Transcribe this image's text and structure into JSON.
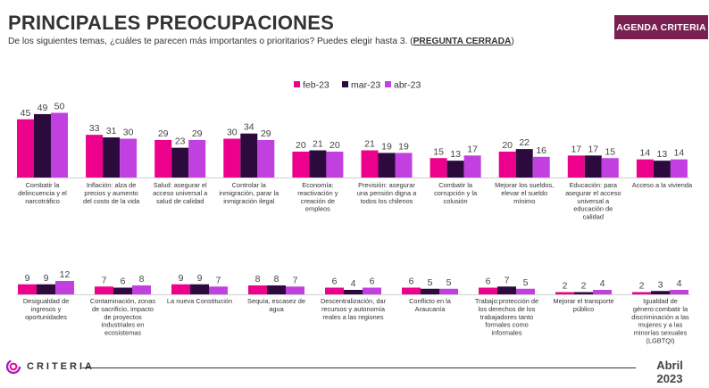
{
  "header": {
    "title": "PRINCIPALES PREOCUPACIONES",
    "subtitle_main": "De los siguientes temas, ¿cuáles te parecen más importantes o prioritarios? Puedes elegir hasta 3. (",
    "subtitle_emph": "PREGUNTA CERRADA",
    "subtitle_end": ")",
    "badge": "AGENDA CRITERIA"
  },
  "footer": {
    "logo_text": "CRITERIA",
    "date_month": "Abril",
    "date_year": "2023"
  },
  "colors": {
    "feb-23": "#ec008c",
    "mar-23": "#2d0a3d",
    "abr-23": "#c23fe0",
    "badge": "#7a1f52"
  },
  "chart_data": {
    "type": "bar",
    "legend": [
      "feb-23",
      "mar-23",
      "abr-23"
    ],
    "legend_position": "top-center",
    "grid": false,
    "panels": [
      {
        "categories": [
          [
            "Combatir la",
            "delincuencia y el",
            "narcotráfico"
          ],
          [
            "Inflación: alza de",
            "precios y aumento",
            "del costo de la vida"
          ],
          [
            "Salud: asegurar el",
            "acceso universal a",
            "salud de calidad"
          ],
          [
            "Controlar la",
            "inmigración, parar la",
            "inmigración ilegal"
          ],
          [
            "Economía:",
            "reactivación y",
            "creación de",
            "empleos"
          ],
          [
            "Previsión: asegurar",
            "una pensión digna a",
            "todos los chilenos"
          ],
          [
            "Combatir la",
            "corrupción y la",
            "colusión"
          ],
          [
            "Mejorar los sueldos,",
            "elevar el sueldo",
            "mínimo"
          ],
          [
            "Educación: para",
            "asegurar el acceso",
            "universal a",
            "educación de",
            "calidad"
          ],
          [
            "Acceso a la vivienda"
          ]
        ],
        "series": [
          {
            "name": "feb-23",
            "values": [
              45,
              33,
              29,
              30,
              20,
              21,
              15,
              20,
              17,
              14
            ]
          },
          {
            "name": "mar-23",
            "values": [
              49,
              31,
              23,
              34,
              21,
              19,
              13,
              22,
              17,
              13
            ]
          },
          {
            "name": "abr-23",
            "values": [
              50,
              30,
              29,
              29,
              20,
              19,
              17,
              16,
              15,
              14
            ]
          }
        ]
      },
      {
        "categories": [
          [
            "Desigualdad de",
            "ingresos y",
            "oportunidades"
          ],
          [
            "Contaminación, zonas",
            "de sacrificio, impacto",
            "de proyectos",
            "industriales en",
            "ecosistemas"
          ],
          [
            "La nueva Constitución"
          ],
          [
            "Sequía, escasez de",
            "agua"
          ],
          [
            "Descentralización, dar",
            "recursos y autonomía",
            "reales a las regiones"
          ],
          [
            "Conflicto en la",
            "Araucanía"
          ],
          [
            "Trabajo:protección de",
            "los derechos de los",
            "trabajadores tanto",
            "formales como",
            "informales"
          ],
          [
            "Mejorar el transporte",
            "público"
          ],
          [
            "Igualdad de",
            "género:combatir la",
            "discriminación a las",
            "mujeres y a las",
            "minorías sexuales",
            "(LGBTQI)"
          ]
        ],
        "series": [
          {
            "name": "feb-23",
            "values": [
              9,
              7,
              9,
              8,
              6,
              6,
              6,
              2,
              2
            ]
          },
          {
            "name": "mar-23",
            "values": [
              9,
              6,
              9,
              8,
              4,
              5,
              7,
              2,
              3
            ]
          },
          {
            "name": "abr-23",
            "values": [
              12,
              8,
              7,
              7,
              6,
              5,
              5,
              4,
              4
            ]
          }
        ]
      }
    ]
  }
}
